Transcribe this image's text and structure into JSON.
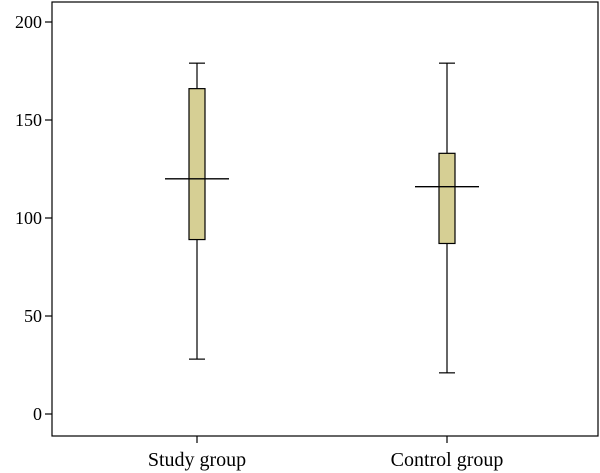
{
  "chart_data": {
    "type": "box",
    "categories": [
      "Study group",
      "Control group"
    ],
    "boxes": [
      {
        "category": "Study group",
        "min": 28,
        "q1": 89,
        "median": 120,
        "q3": 166,
        "max": 179
      },
      {
        "category": "Control group",
        "min": 21,
        "q1": 87,
        "median": 116,
        "q3": 133,
        "max": 179
      }
    ],
    "ylim": [
      0,
      200
    ],
    "yticks": [
      0,
      50,
      100,
      150,
      200
    ],
    "title": "",
    "xlabel": "",
    "ylabel": "",
    "grid": false,
    "box_color": "#d6cf94"
  }
}
